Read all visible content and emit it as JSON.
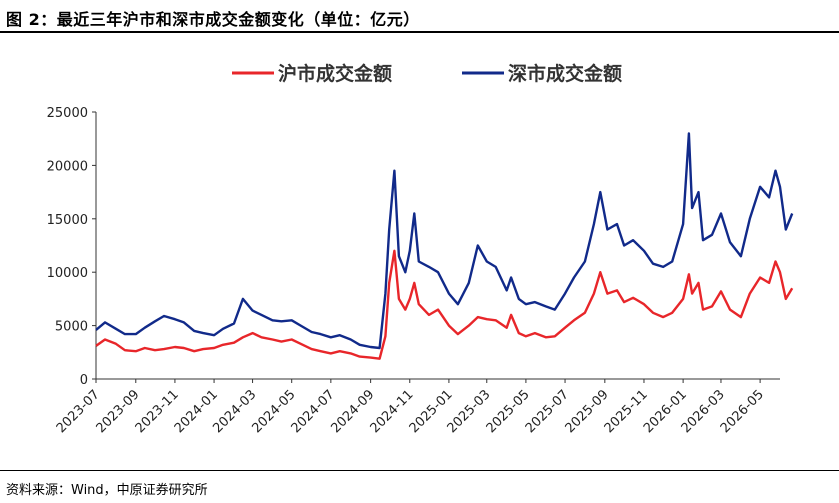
{
  "figure": {
    "title": "图 2：最近三年沪市和深市成交金额变化（单位：亿元）",
    "source": "资料来源：Wind，中原证券研究所"
  },
  "chart_data": {
    "type": "line",
    "title": "",
    "xlabel": "",
    "ylabel": "",
    "ylim": [
      0,
      25000
    ],
    "yticks": [
      0,
      5000,
      10000,
      15000,
      20000,
      25000
    ],
    "xlim": [
      "2023-07",
      "2026-06"
    ],
    "xticks": [
      "2023-07",
      "2023-09",
      "2023-11",
      "2024-01",
      "2024-03",
      "2024-05",
      "2024-07",
      "2024-09",
      "2024-11",
      "2025-01",
      "2025-03",
      "2025-05",
      "2025-07",
      "2025-09",
      "2025-11",
      "2026-01",
      "2026-03",
      "2026-05"
    ],
    "grid": false,
    "legend_position": "top-center",
    "series": [
      {
        "name": "沪市成交金额",
        "color": "#e8262a",
        "points": [
          [
            "2023-07-01",
            3100
          ],
          [
            "2023-07-15",
            3700
          ],
          [
            "2023-08-01",
            3300
          ],
          [
            "2023-08-15",
            2700
          ],
          [
            "2023-09-01",
            2600
          ],
          [
            "2023-09-15",
            2900
          ],
          [
            "2023-10-01",
            2700
          ],
          [
            "2023-10-15",
            2800
          ],
          [
            "2023-11-01",
            3000
          ],
          [
            "2023-11-15",
            2900
          ],
          [
            "2023-12-01",
            2600
          ],
          [
            "2023-12-15",
            2800
          ],
          [
            "2024-01-01",
            2900
          ],
          [
            "2024-01-15",
            3200
          ],
          [
            "2024-02-01",
            3400
          ],
          [
            "2024-02-15",
            3900
          ],
          [
            "2024-03-01",
            4300
          ],
          [
            "2024-03-15",
            3900
          ],
          [
            "2024-04-01",
            3700
          ],
          [
            "2024-04-15",
            3500
          ],
          [
            "2024-05-01",
            3700
          ],
          [
            "2024-05-15",
            3300
          ],
          [
            "2024-06-01",
            2800
          ],
          [
            "2024-06-15",
            2600
          ],
          [
            "2024-07-01",
            2400
          ],
          [
            "2024-07-15",
            2600
          ],
          [
            "2024-08-01",
            2400
          ],
          [
            "2024-08-15",
            2100
          ],
          [
            "2024-09-01",
            2000
          ],
          [
            "2024-09-15",
            1900
          ],
          [
            "2024-09-24",
            4000
          ],
          [
            "2024-09-30",
            9000
          ],
          [
            "2024-10-08",
            12000
          ],
          [
            "2024-10-15",
            7500
          ],
          [
            "2024-10-25",
            6500
          ],
          [
            "2024-11-01",
            7500
          ],
          [
            "2024-11-08",
            9000
          ],
          [
            "2024-11-15",
            7000
          ],
          [
            "2024-12-01",
            6000
          ],
          [
            "2024-12-15",
            6500
          ],
          [
            "2025-01-01",
            5000
          ],
          [
            "2025-01-15",
            4200
          ],
          [
            "2025-02-01",
            5000
          ],
          [
            "2025-02-15",
            5800
          ],
          [
            "2025-03-01",
            5600
          ],
          [
            "2025-03-15",
            5500
          ],
          [
            "2025-04-01",
            4800
          ],
          [
            "2025-04-08",
            6000
          ],
          [
            "2025-04-20",
            4300
          ],
          [
            "2025-05-01",
            4000
          ],
          [
            "2025-05-15",
            4300
          ],
          [
            "2025-06-01",
            3900
          ],
          [
            "2025-06-15",
            4000
          ],
          [
            "2025-07-01",
            4800
          ],
          [
            "2025-07-15",
            5500
          ],
          [
            "2025-08-01",
            6200
          ],
          [
            "2025-08-15",
            8000
          ],
          [
            "2025-08-25",
            10000
          ],
          [
            "2025-09-05",
            8000
          ],
          [
            "2025-09-20",
            8300
          ],
          [
            "2025-10-01",
            7200
          ],
          [
            "2025-10-15",
            7600
          ],
          [
            "2025-11-01",
            7000
          ],
          [
            "2025-11-15",
            6200
          ],
          [
            "2025-12-01",
            5800
          ],
          [
            "2025-12-15",
            6200
          ],
          [
            "2026-01-01",
            7500
          ],
          [
            "2026-01-10",
            9800
          ],
          [
            "2026-01-15",
            8000
          ],
          [
            "2026-01-25",
            9000
          ],
          [
            "2026-02-01",
            6500
          ],
          [
            "2026-02-15",
            6800
          ],
          [
            "2026-03-01",
            8200
          ],
          [
            "2026-03-15",
            6500
          ],
          [
            "2026-04-01",
            5800
          ],
          [
            "2026-04-15",
            8000
          ],
          [
            "2026-05-01",
            9500
          ],
          [
            "2026-05-15",
            9000
          ],
          [
            "2026-05-25",
            11000
          ],
          [
            "2026-06-01",
            10000
          ],
          [
            "2026-06-10",
            7500
          ],
          [
            "2026-06-20",
            8500
          ]
        ]
      },
      {
        "name": "深市成交金额",
        "color": "#112a8a",
        "points": [
          [
            "2023-07-01",
            4600
          ],
          [
            "2023-07-15",
            5300
          ],
          [
            "2023-08-01",
            4700
          ],
          [
            "2023-08-15",
            4200
          ],
          [
            "2023-09-01",
            4200
          ],
          [
            "2023-09-15",
            4800
          ],
          [
            "2023-10-01",
            5400
          ],
          [
            "2023-10-15",
            5900
          ],
          [
            "2023-11-01",
            5600
          ],
          [
            "2023-11-15",
            5300
          ],
          [
            "2023-12-01",
            4500
          ],
          [
            "2023-12-15",
            4300
          ],
          [
            "2024-01-01",
            4100
          ],
          [
            "2024-01-15",
            4700
          ],
          [
            "2024-02-01",
            5200
          ],
          [
            "2024-02-15",
            7500
          ],
          [
            "2024-03-01",
            6400
          ],
          [
            "2024-03-15",
            6000
          ],
          [
            "2024-04-01",
            5500
          ],
          [
            "2024-04-15",
            5400
          ],
          [
            "2024-05-01",
            5500
          ],
          [
            "2024-05-15",
            5000
          ],
          [
            "2024-06-01",
            4400
          ],
          [
            "2024-06-15",
            4200
          ],
          [
            "2024-07-01",
            3900
          ],
          [
            "2024-07-15",
            4100
          ],
          [
            "2024-08-01",
            3700
          ],
          [
            "2024-08-15",
            3200
          ],
          [
            "2024-09-01",
            3000
          ],
          [
            "2024-09-15",
            2900
          ],
          [
            "2024-09-24",
            8000
          ],
          [
            "2024-09-30",
            14000
          ],
          [
            "2024-10-08",
            19500
          ],
          [
            "2024-10-15",
            11500
          ],
          [
            "2024-10-25",
            10000
          ],
          [
            "2024-11-01",
            12000
          ],
          [
            "2024-11-08",
            15500
          ],
          [
            "2024-11-15",
            11000
          ],
          [
            "2024-12-01",
            10500
          ],
          [
            "2024-12-15",
            10000
          ],
          [
            "2025-01-01",
            8000
          ],
          [
            "2025-01-15",
            7000
          ],
          [
            "2025-02-01",
            9000
          ],
          [
            "2025-02-15",
            12500
          ],
          [
            "2025-03-01",
            11000
          ],
          [
            "2025-03-15",
            10500
          ],
          [
            "2025-04-01",
            8300
          ],
          [
            "2025-04-08",
            9500
          ],
          [
            "2025-04-20",
            7500
          ],
          [
            "2025-05-01",
            7000
          ],
          [
            "2025-05-15",
            7200
          ],
          [
            "2025-06-01",
            6800
          ],
          [
            "2025-06-15",
            6500
          ],
          [
            "2025-07-01",
            8000
          ],
          [
            "2025-07-15",
            9500
          ],
          [
            "2025-08-01",
            11000
          ],
          [
            "2025-08-15",
            14500
          ],
          [
            "2025-08-25",
            17500
          ],
          [
            "2025-09-05",
            14000
          ],
          [
            "2025-09-20",
            14500
          ],
          [
            "2025-10-01",
            12500
          ],
          [
            "2025-10-15",
            13000
          ],
          [
            "2025-11-01",
            12000
          ],
          [
            "2025-11-15",
            10800
          ],
          [
            "2025-12-01",
            10500
          ],
          [
            "2025-12-15",
            11000
          ],
          [
            "2026-01-01",
            14500
          ],
          [
            "2026-01-10",
            23000
          ],
          [
            "2026-01-15",
            16000
          ],
          [
            "2026-01-25",
            17500
          ],
          [
            "2026-02-01",
            13000
          ],
          [
            "2026-02-15",
            13500
          ],
          [
            "2026-03-01",
            15500
          ],
          [
            "2026-03-15",
            12800
          ],
          [
            "2026-04-01",
            11500
          ],
          [
            "2026-04-15",
            15000
          ],
          [
            "2026-05-01",
            18000
          ],
          [
            "2026-05-15",
            17000
          ],
          [
            "2026-05-25",
            19500
          ],
          [
            "2026-06-01",
            18000
          ],
          [
            "2026-06-10",
            14000
          ],
          [
            "2026-06-20",
            15500
          ]
        ]
      }
    ]
  }
}
